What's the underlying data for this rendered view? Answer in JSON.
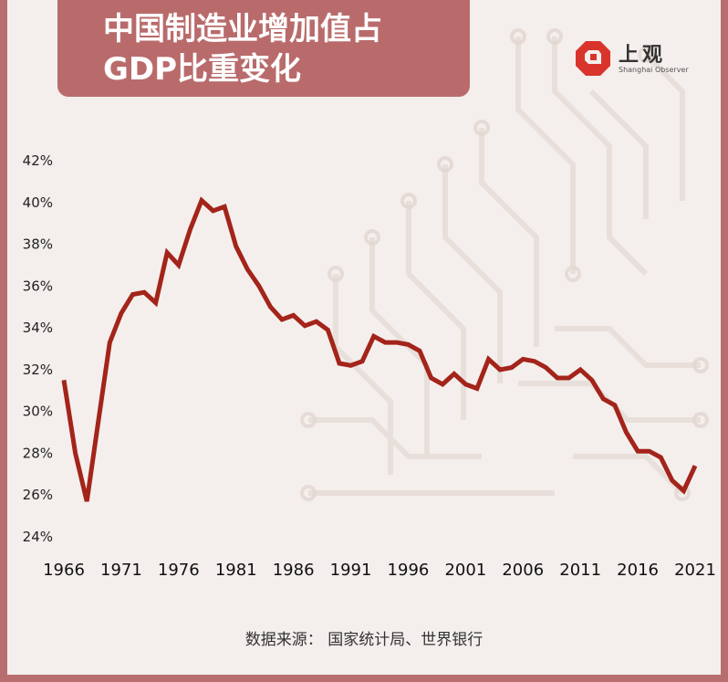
{
  "header": {
    "title_line1": "中国制造业增加值占",
    "title_line2": "GDP比重变化"
  },
  "logo": {
    "name": "上观",
    "subtitle": "Shanghai Observer",
    "icon": "shanghai-observer-logo-icon",
    "color": "#d9342b"
  },
  "source": "数据来源： 国家统计局、世界银行",
  "colors": {
    "line": "#a3241a",
    "frame": "#b86e6e",
    "title_bg": "#b96b6b",
    "background": "#f4efec"
  },
  "chart_data": {
    "type": "line",
    "title": "中国制造业增加值占GDP比重变化",
    "xlabel": "",
    "ylabel": "",
    "x_ticks": [
      1966,
      1971,
      1976,
      1981,
      1986,
      1991,
      1996,
      2001,
      2006,
      2011,
      2016,
      2021
    ],
    "y_ticks": [
      "24%",
      "26%",
      "28%",
      "30%",
      "32%",
      "34%",
      "36%",
      "38%",
      "40%",
      "42%"
    ],
    "ylim": [
      24,
      42
    ],
    "xlim": [
      1966,
      2021
    ],
    "grid": false,
    "series": [
      {
        "x": [
          1966,
          1967,
          1968,
          1969,
          1970,
          1971,
          1972,
          1973,
          1974,
          1975,
          1976,
          1977,
          1978,
          1979,
          1980,
          1981,
          1982,
          1983,
          1984,
          1985,
          1986,
          1987,
          1988,
          1989,
          1990,
          1991,
          1992,
          1993,
          1994,
          1995,
          1996,
          1997,
          1998,
          1999,
          2000,
          2001,
          2002,
          2003,
          2004,
          2005,
          2006,
          2007,
          2008,
          2009,
          2010,
          2011,
          2012,
          2013,
          2014,
          2015,
          2016,
          2017,
          2018,
          2019,
          2020,
          2021
        ],
        "values": [
          31.5,
          28.0,
          25.7,
          29.5,
          33.3,
          34.7,
          35.6,
          35.7,
          35.2,
          37.6,
          37.0,
          38.7,
          40.1,
          39.6,
          39.8,
          37.9,
          36.8,
          36.0,
          35.0,
          34.4,
          34.6,
          34.1,
          34.3,
          33.9,
          32.3,
          32.2,
          32.4,
          33.6,
          33.3,
          33.3,
          33.2,
          32.9,
          31.6,
          31.3,
          31.8,
          31.3,
          31.1,
          32.5,
          32.0,
          32.1,
          32.5,
          32.4,
          32.1,
          31.6,
          31.6,
          32.0,
          31.5,
          30.6,
          30.3,
          29.0,
          28.1,
          28.1,
          27.8,
          26.7,
          26.2,
          27.4
        ]
      }
    ]
  }
}
